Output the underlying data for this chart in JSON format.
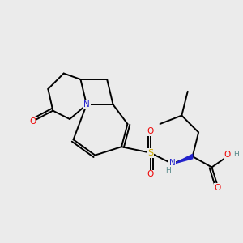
{
  "bg_color": "#ebebeb",
  "atom_colors": {
    "C": "#000000",
    "N": "#2222cc",
    "O": "#ee0000",
    "S": "#ccaa00",
    "H": "#558888"
  },
  "bond_color": "#000000",
  "bond_width": 1.4
}
